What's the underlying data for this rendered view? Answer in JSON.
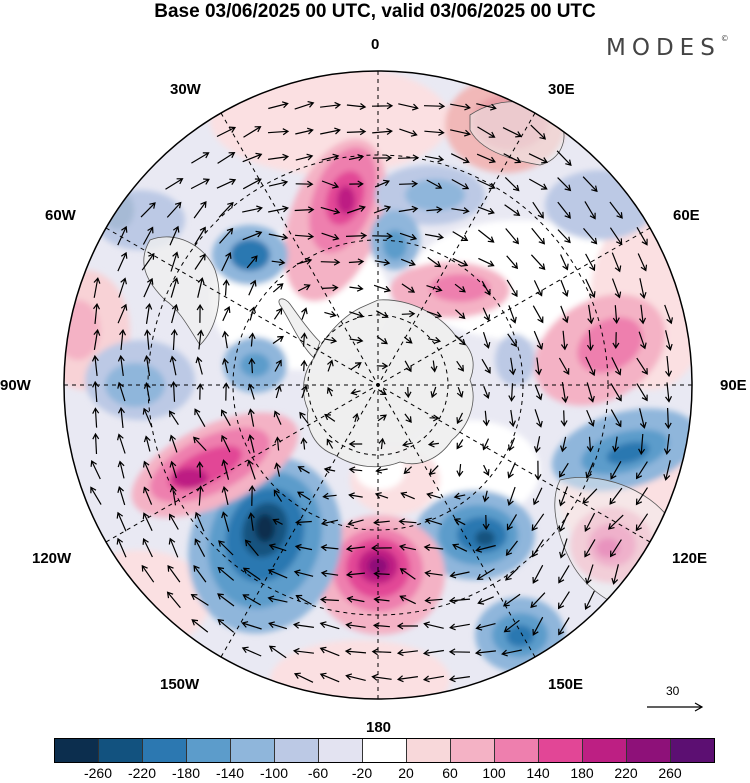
{
  "header": {
    "title": "Base 03/06/2025 00 UTC, valid 03/06/2025 00 UTC",
    "brand": "MODES",
    "brand_mark": "©"
  },
  "map": {
    "projection": "south-polar-stereographic",
    "longitude_labels": {
      "0": "0",
      "30W": "30W",
      "30E": "30E",
      "60W": "60W",
      "60E": "60E",
      "90W": "90W",
      "90E": "90E",
      "120W": "120W",
      "120E": "120E",
      "150W": "150W",
      "150E": "150E",
      "180": "180"
    },
    "continent_fill": "#efefef",
    "wind_reference_label": "30"
  },
  "colorbar": {
    "tick_labels": [
      "-260",
      "-220",
      "-180",
      "-140",
      "-100",
      "-60",
      "-20",
      "20",
      "60",
      "100",
      "140",
      "180",
      "220",
      "260"
    ],
    "colors": [
      "#0c2e4e",
      "#12527f",
      "#2c78b1",
      "#5c9ccb",
      "#8fb6db",
      "#bcc9e5",
      "#e3e3f1",
      "#ffffff",
      "#f8d8da",
      "#f4b2c5",
      "#ee7fae",
      "#e24696",
      "#bd1f83",
      "#8e1179",
      "#5c0f72"
    ]
  }
}
